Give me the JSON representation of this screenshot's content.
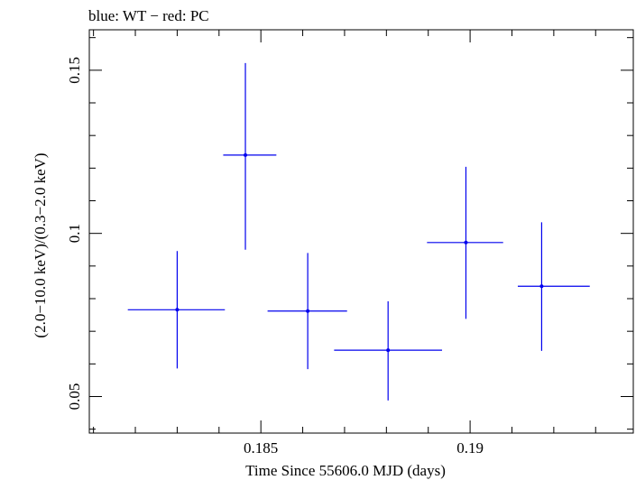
{
  "chart_data": {
    "type": "scatter",
    "title": "blue: WT − red: PC",
    "xlabel": "Time Since 55606.0 MJD (days)",
    "ylabel": "(2.0−10.0 keV)/(0.3−2.0 keV)",
    "xlim": [
      0.1809,
      0.1939
    ],
    "ylim": [
      0.0388,
      0.1624
    ],
    "x_ticks": [
      {
        "value": 0.185,
        "label": "0.185"
      },
      {
        "value": 0.19,
        "label": "0.19"
      }
    ],
    "y_ticks": [
      {
        "value": 0.05,
        "label": "0.05"
      },
      {
        "value": 0.1,
        "label": "0.1"
      },
      {
        "value": 0.15,
        "label": "0.15"
      }
    ],
    "grid": false,
    "series": [
      {
        "color": "#0000ee",
        "points": [
          {
            "x": 0.183,
            "xerr_lo": 0.00118,
            "xerr_hi": 0.00114,
            "y": 0.0766,
            "y_lo": 0.0586,
            "y_hi": 0.0946
          },
          {
            "x": 0.18463,
            "xerr_lo": 0.00053,
            "xerr_hi": 0.00074,
            "y": 0.124,
            "y_lo": 0.095,
            "y_hi": 0.1522
          },
          {
            "x": 0.18612,
            "xerr_lo": 0.00096,
            "xerr_hi": 0.00094,
            "y": 0.0762,
            "y_lo": 0.0584,
            "y_hi": 0.094
          },
          {
            "x": 0.18804,
            "xerr_lo": 0.00129,
            "xerr_hi": 0.00129,
            "y": 0.0642,
            "y_lo": 0.0488,
            "y_hi": 0.0792
          },
          {
            "x": 0.1899,
            "xerr_lo": 0.00093,
            "xerr_hi": 0.00089,
            "y": 0.0972,
            "y_lo": 0.0738,
            "y_hi": 0.1204
          },
          {
            "x": 0.19171,
            "xerr_lo": 0.00057,
            "xerr_hi": 0.00115,
            "y": 0.0838,
            "y_lo": 0.064,
            "y_hi": 0.1034
          }
        ]
      }
    ]
  }
}
